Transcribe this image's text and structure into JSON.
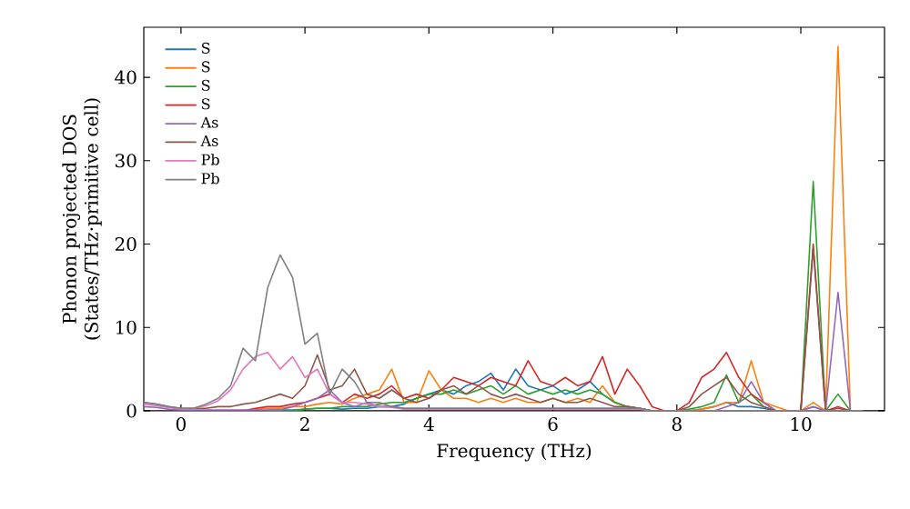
{
  "chart_data": {
    "type": "line",
    "xlabel": "Frequency (THz)",
    "ylabel": "Phonon projected DOS (States/THz·primitive cell)",
    "x": [
      -0.6,
      -0.4,
      -0.2,
      0,
      0.2,
      0.4,
      0.6,
      0.8,
      1.0,
      1.2,
      1.4,
      1.6,
      1.8,
      2.0,
      2.2,
      2.4,
      2.6,
      2.8,
      3.0,
      3.2,
      3.4,
      3.6,
      3.8,
      4.0,
      4.2,
      4.4,
      4.6,
      4.8,
      5.0,
      5.2,
      5.4,
      5.6,
      5.8,
      6.0,
      6.2,
      6.4,
      6.6,
      6.8,
      7.0,
      7.2,
      7.4,
      7.6,
      7.8,
      8.0,
      8.2,
      8.4,
      8.6,
      8.8,
      9.0,
      9.2,
      9.4,
      9.6,
      9.8,
      10.0,
      10.2,
      10.4,
      10.6,
      10.8,
      11.0
    ],
    "xlim": [
      -0.6,
      11.35
    ],
    "ylim": [
      0,
      46
    ],
    "xticks": [
      0,
      2,
      4,
      6,
      8,
      10
    ],
    "yticks": [
      0,
      10,
      20,
      30,
      40
    ],
    "legend": "top left",
    "grid": false,
    "marker": "none",
    "line_style": "solid",
    "series": [
      {
        "name": "S",
        "color": "#1f77b4",
        "values": [
          null,
          null,
          null,
          null,
          null,
          null,
          null,
          null,
          null,
          null,
          0.1,
          0.1,
          0.1,
          0.2,
          0.3,
          0.3,
          0.2,
          0.3,
          0.3,
          0.5,
          0.5,
          0.8,
          1.5,
          2,
          2.5,
          2,
          3,
          3.5,
          4.5,
          2.5,
          5,
          3,
          2.5,
          3,
          2,
          2.5,
          3.5,
          2,
          1,
          0.5,
          0.3,
          0,
          0,
          0,
          0,
          0.2,
          0.5,
          1,
          0.5,
          0.5,
          0.3,
          0,
          0,
          0,
          0.5,
          0,
          null,
          null,
          null
        ]
      },
      {
        "name": "S",
        "color": "#ff7f0e",
        "values": [
          null,
          null,
          null,
          null,
          null,
          null,
          null,
          null,
          null,
          0.2,
          0.3,
          0.3,
          0.5,
          0.5,
          0.8,
          1,
          0.8,
          1.5,
          2,
          2.5,
          5,
          1,
          1,
          4.8,
          2.5,
          1.5,
          1.5,
          1,
          1.5,
          1,
          1.5,
          1,
          1,
          1.5,
          1,
          1.5,
          1,
          3,
          1,
          0.5,
          0.3,
          0,
          0,
          0,
          0,
          0.2,
          0.5,
          1,
          1,
          6,
          1,
          0.5,
          0,
          0,
          1,
          0,
          43.7,
          0,
          0
        ]
      },
      {
        "name": "S",
        "color": "#2ca02c",
        "values": [
          null,
          null,
          null,
          null,
          null,
          null,
          null,
          null,
          null,
          null,
          0,
          0,
          0,
          0.2,
          0.3,
          0.3,
          0.5,
          0.5,
          0.5,
          0.8,
          1,
          1,
          1.5,
          2,
          2,
          2.5,
          2,
          2.5,
          3,
          2,
          3,
          2,
          2.5,
          2,
          2.5,
          2,
          2.5,
          2,
          1,
          0.5,
          0.3,
          0,
          0,
          0,
          0.2,
          0.5,
          1,
          4.3,
          1,
          2,
          0.5,
          0,
          0,
          0,
          27.5,
          0,
          2,
          0,
          0
        ]
      },
      {
        "name": "S",
        "color": "#d62728",
        "values": [
          null,
          null,
          null,
          null,
          null,
          null,
          0,
          0,
          0,
          0.3,
          0.5,
          0.5,
          0.8,
          1,
          1.5,
          2,
          1,
          2,
          1.5,
          2,
          3,
          1.5,
          2,
          1.5,
          2.5,
          4,
          3.5,
          3,
          4,
          3.5,
          3,
          6,
          3.5,
          3,
          4,
          3,
          3.5,
          6.5,
          2,
          5,
          3,
          0.5,
          0,
          0,
          1,
          4,
          5,
          7,
          4,
          2,
          1,
          0,
          0,
          0,
          20,
          0,
          0.5,
          0,
          0
        ]
      },
      {
        "name": "As",
        "color": "#9467bd",
        "values": [
          0.5,
          0.4,
          0.2,
          0.1,
          0.1,
          0.1,
          0.1,
          0.1,
          0.1,
          0.1,
          0.1,
          0.1,
          0.5,
          1,
          1.5,
          2.5,
          1,
          0.5,
          1,
          0.5,
          0.5,
          0.3,
          0.3,
          0.3,
          0.3,
          0.3,
          0.3,
          0.3,
          0.3,
          0.3,
          0.3,
          0.3,
          0.3,
          0.3,
          0.3,
          0.3,
          0.3,
          0.3,
          0.3,
          0.3,
          0.3,
          0,
          0,
          0,
          0,
          0,
          0,
          0.5,
          1,
          3.5,
          1,
          0,
          0,
          0,
          0.5,
          0,
          14.2,
          0,
          0
        ]
      },
      {
        "name": "As",
        "color": "#8c564b",
        "values": [
          1,
          0.8,
          0.5,
          0.3,
          0.3,
          0.3,
          0.5,
          0.5,
          0.8,
          1,
          1.5,
          2,
          1.5,
          3,
          6.7,
          2.5,
          3,
          5,
          2,
          1.5,
          2.5,
          1.5,
          1,
          1.5,
          2.5,
          3,
          2,
          3,
          2,
          1.5,
          2,
          1.5,
          1,
          1.5,
          1,
          1,
          1.5,
          1,
          0.5,
          0.5,
          0.3,
          0,
          0,
          0,
          0.5,
          2,
          3,
          4,
          2,
          1,
          0.5,
          0,
          0,
          0,
          19.5,
          0,
          0.3,
          0,
          0
        ]
      },
      {
        "name": "Pb",
        "color": "#e377c2",
        "values": [
          0.8,
          0.6,
          0.4,
          0.2,
          0.3,
          0.6,
          1.2,
          2.5,
          5,
          6.5,
          7,
          5,
          6.5,
          4,
          5,
          2,
          1,
          1,
          0.8,
          0.5,
          0.4,
          0.2,
          0.2,
          0.2,
          0.2,
          0.2,
          0.2,
          0.2,
          0.2,
          0.2,
          0.2,
          0.2,
          0.2,
          0.2,
          0.2,
          0.2,
          0.2,
          0.2,
          0.2,
          0.2,
          0.2,
          0,
          0,
          0,
          0,
          0,
          0,
          0,
          0,
          0,
          0,
          0,
          0,
          0,
          0,
          0,
          0,
          0,
          0
        ]
      },
      {
        "name": "Pb",
        "color": "#7f7f7f",
        "values": [
          1,
          0.8,
          0.5,
          0.3,
          0.3,
          0.8,
          1.5,
          3,
          7.5,
          6,
          14.8,
          18.7,
          16,
          8,
          9.3,
          2,
          5,
          3.5,
          1,
          1,
          0.5,
          0.3,
          0.3,
          0.3,
          0.3,
          0.3,
          0.3,
          0.3,
          0.3,
          0.3,
          0.3,
          0.3,
          0.3,
          0.3,
          0.3,
          0.3,
          0.3,
          0.3,
          0.3,
          0.3,
          0.3,
          0,
          0,
          0,
          0,
          0,
          0,
          0,
          0,
          0,
          0,
          0,
          0,
          0,
          0,
          0,
          0,
          0,
          0
        ]
      }
    ]
  }
}
